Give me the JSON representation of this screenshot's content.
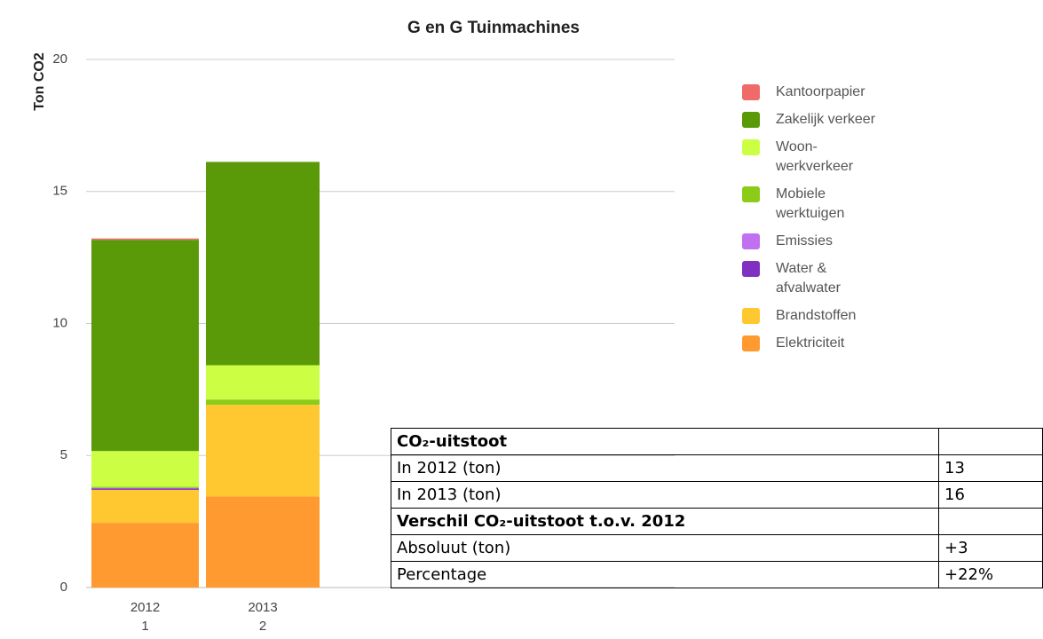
{
  "chart_data": {
    "type": "stacked_bar",
    "title": "G en G Tuinmachines",
    "y_label": "Ton CO2",
    "categories": [
      "2012",
      "2013"
    ],
    "category_sublabels": [
      "1",
      "2"
    ],
    "ylim": [
      0,
      20
    ],
    "yticks": [
      0,
      5,
      10,
      15,
      20
    ],
    "grid": true,
    "legend": "right",
    "series": [
      {
        "name": "Kantoorpapier",
        "color": "#f06a6a",
        "values": [
          0.05,
          0
        ]
      },
      {
        "name": "Zakelijk verkeer",
        "color": "#5a9a08",
        "values": [
          8.0,
          7.7
        ]
      },
      {
        "name": "Woon-werkverkeer",
        "color": "#ccff44",
        "values": [
          1.35,
          1.3
        ]
      },
      {
        "name": "Mobiele werktuigen",
        "color": "#8ccc18",
        "values": [
          0.05,
          0.2
        ]
      },
      {
        "name": "Emissies",
        "color": "#c070f0",
        "values": [
          0.02,
          0
        ]
      },
      {
        "name": "Water & afvalwater",
        "color": "#8030c0",
        "values": [
          0.05,
          0
        ]
      },
      {
        "name": "Brandstoffen",
        "color": "#ffc830",
        "values": [
          1.25,
          3.47
        ]
      },
      {
        "name": "Elektriciteit",
        "color": "#ff9a30",
        "values": [
          2.45,
          3.45
        ]
      }
    ]
  },
  "table": {
    "rows": [
      {
        "bold": true,
        "cells": [
          "CO₂-uitstoot"
        ]
      },
      {
        "bold": false,
        "cells": [
          "In 2012 (ton)",
          "13"
        ]
      },
      {
        "bold": false,
        "cells": [
          "In 2013 (ton)",
          "16"
        ]
      },
      {
        "bold": true,
        "cells": [
          "Verschil CO₂-uitstoot t.o.v. 2012"
        ]
      },
      {
        "bold": false,
        "cells": [
          "Absoluut (ton)",
          "+3"
        ]
      },
      {
        "bold": false,
        "cells": [
          "Percentage",
          "+22%"
        ]
      }
    ]
  }
}
